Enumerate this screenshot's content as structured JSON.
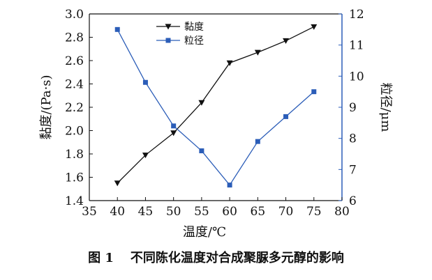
{
  "chart_data": {
    "type": "line",
    "xlabel": "温度/℃",
    "ylabel_left": "黏度/(Pa·s)",
    "ylabel_right": "粒径/μm",
    "xlim": [
      35,
      80
    ],
    "ylim_left": [
      1.4,
      3.0
    ],
    "ylim_right": [
      6,
      12
    ],
    "x_ticks": [
      "35",
      "40",
      "45",
      "50",
      "55",
      "60",
      "65",
      "70",
      "75",
      "80"
    ],
    "y_left_ticks": [
      "1.4",
      "1.6",
      "1.8",
      "2.0",
      "2.2",
      "2.4",
      "2.6",
      "2.8",
      "3.0"
    ],
    "y_right_ticks": [
      "6",
      "7",
      "8",
      "9",
      "10",
      "11",
      "12"
    ],
    "x": [
      40,
      45,
      50,
      55,
      60,
      65,
      70,
      75
    ],
    "series": [
      {
        "name": "黏度",
        "axis": "left",
        "color": "#111111",
        "marker": "triangle-down",
        "values": [
          1.55,
          1.79,
          1.98,
          2.24,
          2.58,
          2.67,
          2.77,
          2.89
        ]
      },
      {
        "name": "粒径",
        "axis": "right",
        "color": "#2b5db8",
        "marker": "square",
        "values": [
          11.5,
          9.8,
          8.4,
          7.6,
          6.5,
          7.9,
          8.7,
          9.5
        ]
      }
    ],
    "legend_position": "top-left"
  },
  "caption": {
    "number": "图 1",
    "text": "不同陈化温度对合成聚脲多元醇的影响"
  }
}
